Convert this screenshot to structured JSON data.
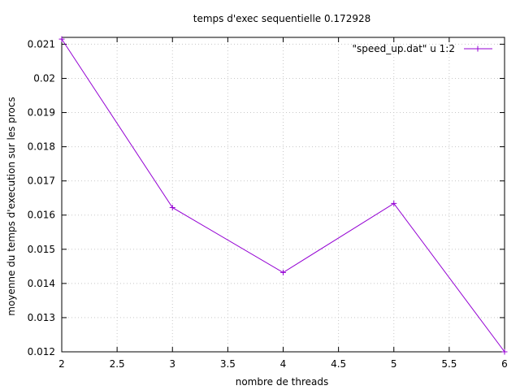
{
  "chart_data": {
    "type": "line",
    "title": "temps d'exec sequentielle 0.172928",
    "xlabel": "nombre de threads",
    "ylabel": "moyenne du temps d'execution sur les procs",
    "xlim": [
      2,
      6
    ],
    "ylim": [
      0.012,
      0.0212
    ],
    "grid": true,
    "legend_position": "top-right",
    "x_ticks": [
      "2",
      "2.5",
      "3",
      "3.5",
      "4",
      "4.5",
      "5",
      "5.5",
      "6"
    ],
    "y_ticks": [
      "0.012",
      "0.013",
      "0.014",
      "0.015",
      "0.016",
      "0.017",
      "0.018",
      "0.019",
      "0.02",
      "0.021"
    ],
    "series": [
      {
        "name": "\"speed_up.dat\" u 1:2",
        "color": "#9400d3",
        "marker": "plus",
        "x": [
          2,
          3,
          4,
          5,
          6
        ],
        "y": [
          0.02115,
          0.01622,
          0.01432,
          0.01634,
          0.012
        ]
      }
    ]
  }
}
